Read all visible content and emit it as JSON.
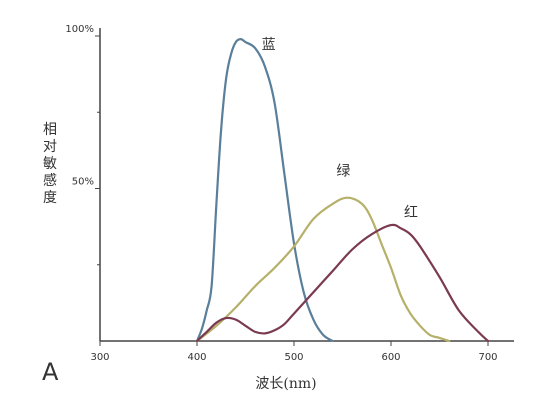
{
  "chart_data": {
    "type": "line",
    "panel_label": "A",
    "title": "",
    "xlabel": "波长(nm)",
    "ylabel": "相对敏感度",
    "xlim": [
      300,
      700
    ],
    "ylim": [
      0,
      100
    ],
    "x_ticks": [
      300,
      400,
      500,
      600,
      700
    ],
    "y_ticks": [
      {
        "value": 100,
        "label": "100%"
      },
      {
        "value": 50,
        "label": "50%"
      }
    ],
    "grid": false,
    "legend": "inline labels at curve peaks",
    "series": [
      {
        "name": "蓝",
        "color": "#5a7f9b",
        "points": [
          [
            400,
            0
          ],
          [
            405,
            4
          ],
          [
            410,
            10
          ],
          [
            415,
            18
          ],
          [
            420,
            45
          ],
          [
            425,
            70
          ],
          [
            430,
            86
          ],
          [
            435,
            94
          ],
          [
            440,
            98
          ],
          [
            445,
            99
          ],
          [
            450,
            98
          ],
          [
            460,
            96
          ],
          [
            470,
            90
          ],
          [
            480,
            78
          ],
          [
            490,
            55
          ],
          [
            500,
            32
          ],
          [
            510,
            16
          ],
          [
            520,
            7
          ],
          [
            530,
            2
          ],
          [
            540,
            0
          ]
        ]
      },
      {
        "name": "绿",
        "color": "#b6b06a",
        "points": [
          [
            400,
            0
          ],
          [
            420,
            5
          ],
          [
            440,
            11
          ],
          [
            460,
            18
          ],
          [
            480,
            24
          ],
          [
            500,
            31
          ],
          [
            520,
            40
          ],
          [
            540,
            45
          ],
          [
            555,
            47
          ],
          [
            570,
            45
          ],
          [
            580,
            40
          ],
          [
            590,
            32
          ],
          [
            600,
            24
          ],
          [
            610,
            15
          ],
          [
            620,
            9
          ],
          [
            630,
            5
          ],
          [
            640,
            2
          ],
          [
            650,
            1
          ],
          [
            660,
            0
          ]
        ]
      },
      {
        "name": "红",
        "color": "#7a3a52",
        "points": [
          [
            400,
            0
          ],
          [
            410,
            3
          ],
          [
            420,
            6
          ],
          [
            430,
            7.5
          ],
          [
            440,
            7
          ],
          [
            450,
            5
          ],
          [
            460,
            3
          ],
          [
            470,
            2.5
          ],
          [
            480,
            3.5
          ],
          [
            490,
            5.5
          ],
          [
            500,
            9
          ],
          [
            520,
            16
          ],
          [
            540,
            23
          ],
          [
            560,
            30
          ],
          [
            580,
            35
          ],
          [
            600,
            38
          ],
          [
            610,
            37
          ],
          [
            620,
            35
          ],
          [
            630,
            31
          ],
          [
            650,
            21
          ],
          [
            670,
            10
          ],
          [
            690,
            3
          ],
          [
            700,
            0
          ]
        ]
      }
    ]
  }
}
